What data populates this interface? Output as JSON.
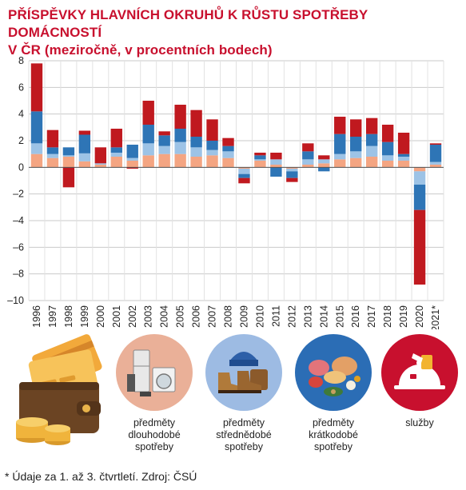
{
  "title": {
    "line1": "PŘÍSPĚVKY HLAVNÍCH OKRUHŮ K RŮSTU SPOTŘEBY DOMÁCNOSTÍ",
    "line2": "V ČR (meziročně, v procentních bodech)"
  },
  "chart_data": {
    "type": "bar",
    "stacked": true,
    "categories": [
      "1996",
      "1997",
      "1998",
      "1999",
      "2000",
      "2001",
      "2002",
      "2003",
      "2004",
      "2005",
      "2006",
      "2007",
      "2008",
      "2009",
      "2010",
      "2011",
      "2012",
      "2013",
      "2014",
      "2015",
      "2016",
      "2017",
      "2018",
      "2019",
      "2020",
      "2021*"
    ],
    "ylim": [
      -10,
      8
    ],
    "yticks": [
      8,
      6,
      4,
      2,
      0,
      -2,
      -4,
      -6,
      -8,
      -10
    ],
    "ytick_labels": [
      "8",
      "6",
      "4",
      "2",
      "0",
      "–2",
      "–4",
      "–6",
      "–8",
      "–10"
    ],
    "grid": true,
    "series": [
      {
        "key": "sluzby",
        "color": "#f4a582",
        "values": [
          1.0,
          0.7,
          0.8,
          0.45,
          0.2,
          0.8,
          0.5,
          0.9,
          1.0,
          1.0,
          0.8,
          0.9,
          0.7,
          -0.1,
          0.5,
          0.2,
          -0.1,
          0.2,
          0.3,
          0.6,
          0.7,
          0.8,
          0.5,
          0.5,
          -0.3,
          0.2
        ]
      },
      {
        "key": "dlouhodobe",
        "color": "#9dc3e6",
        "values": [
          0.8,
          0.3,
          0.1,
          0.6,
          0.1,
          0.3,
          0.2,
          0.9,
          0.6,
          0.9,
          0.7,
          0.4,
          0.5,
          -0.4,
          0.1,
          0.4,
          -0.2,
          0.4,
          0.3,
          0.4,
          0.5,
          0.8,
          0.4,
          0.3,
          -1.0,
          0.2
        ]
      },
      {
        "key": "strednedobe",
        "color": "#2e75b6",
        "values": [
          2.4,
          0.5,
          0.6,
          1.4,
          0.0,
          0.4,
          1.0,
          1.4,
          0.8,
          1.0,
          0.8,
          0.7,
          0.4,
          -0.3,
          0.3,
          -0.7,
          -0.5,
          0.6,
          -0.3,
          1.5,
          1.1,
          0.9,
          1.0,
          0.2,
          -1.9,
          1.3
        ]
      },
      {
        "key": "kratkodobe",
        "color": "#c0191f",
        "values": [
          3.6,
          1.3,
          -1.5,
          0.3,
          1.2,
          1.4,
          -0.1,
          1.8,
          0.3,
          1.8,
          2.0,
          1.6,
          0.6,
          -0.4,
          0.2,
          0.5,
          -0.3,
          0.6,
          0.3,
          1.3,
          1.3,
          1.2,
          1.3,
          1.6,
          -5.6,
          0.1
        ]
      }
    ]
  },
  "legend": [
    {
      "icon": "wallet-cards-coins-icon",
      "lines": []
    },
    {
      "icon": "appliances-icon",
      "lines": [
        "předměty",
        "dlouhodobé",
        "spotřeby"
      ]
    },
    {
      "icon": "clothing-shoes-icon",
      "lines": [
        "předměty",
        "střednědobé",
        "spotřeby"
      ]
    },
    {
      "icon": "food-icon",
      "lines": [
        "předměty",
        "krátkodobé",
        "spotřeby"
      ]
    },
    {
      "icon": "services-icon",
      "lines": [
        "služby"
      ]
    }
  ],
  "colors": {
    "title": "#c8102e",
    "circle_dlouhodobe": "#eab098",
    "circle_strednedobe": "#9dbbe3",
    "circle_kratkodobe": "#2b6db5",
    "circle_sluzby": "#c8102e"
  },
  "footnote": "* Údaje za 1. až 3. čtvrtletí. Zdroj: ČSÚ"
}
